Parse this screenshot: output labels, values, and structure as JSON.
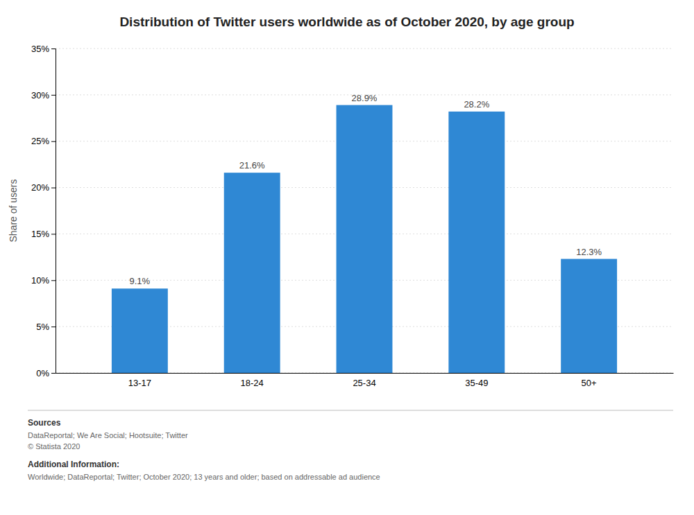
{
  "chart_data": {
    "type": "bar",
    "title": "Distribution of Twitter users worldwide as of October 2020, by age group",
    "categories": [
      "13-17",
      "18-24",
      "25-34",
      "35-49",
      "50+"
    ],
    "values": [
      9.1,
      21.6,
      28.9,
      28.2,
      12.3
    ],
    "value_labels": [
      "9.1%",
      "21.6%",
      "28.9%",
      "28.2%",
      "12.3%"
    ],
    "data_labels": true,
    "color": "#2f88d4",
    "ylabel": "Share of users",
    "ylim": [
      0,
      35
    ],
    "yticks": [
      {
        "value": 0,
        "label": "0%"
      },
      {
        "value": 5,
        "label": "5%"
      },
      {
        "value": 10,
        "label": "10%"
      },
      {
        "value": 15,
        "label": "15%"
      },
      {
        "value": 20,
        "label": "20%"
      },
      {
        "value": 25,
        "label": "25%"
      },
      {
        "value": 30,
        "label": "30%"
      },
      {
        "value": 35,
        "label": "35%"
      }
    ],
    "grid": true,
    "annotations": [
      {
        "title": "Sources",
        "lines": [
          "DataReportal; We Are Social; Hootsuite; Twitter",
          "© Statista 2020"
        ]
      },
      {
        "title": "Additional Information:",
        "lines": [
          "Worldwide; DataReportal; Twitter; October 2020; 13 years and older; based on addressable ad audience"
        ]
      }
    ]
  }
}
